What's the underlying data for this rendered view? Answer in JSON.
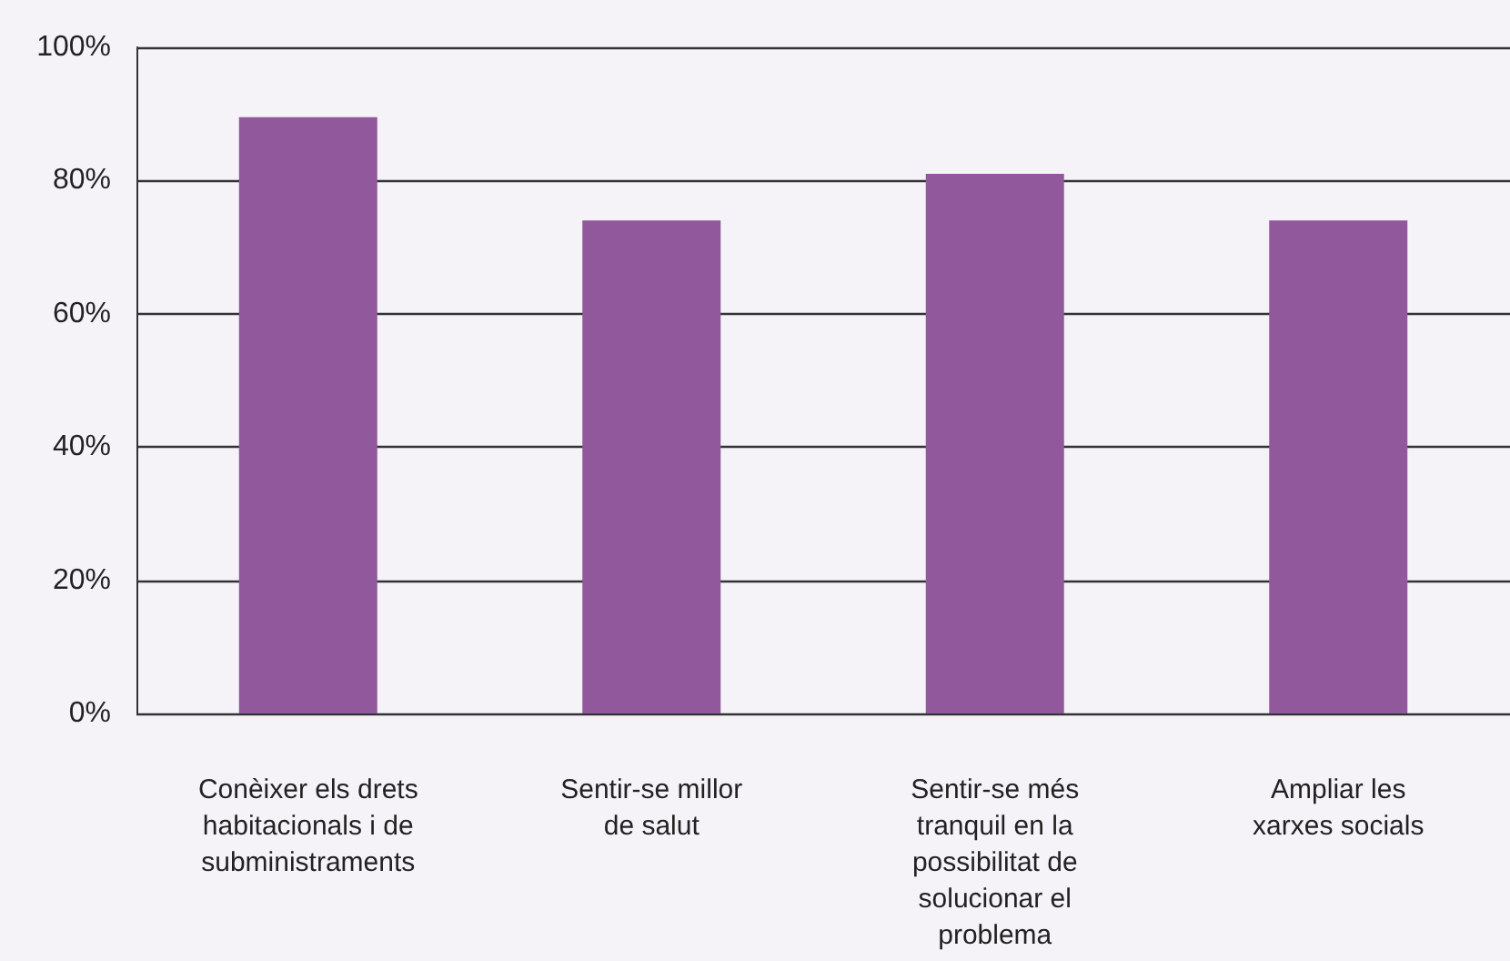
{
  "chart_data": {
    "type": "bar",
    "categories": [
      "Conèixer els drets\nhabitacionals i de\nsubministraments",
      "Sentir-se millor\nde salut",
      "Sentir-se més\ntranquil en la\npossibilitat de\nsolucionar el\nproblema",
      "Ampliar les\nxarxes socials"
    ],
    "values": [
      89.5,
      74,
      81,
      74
    ],
    "color": "#91589b",
    "ylim": [
      0,
      100
    ],
    "yticks": [
      {
        "value": 0,
        "label": "0%"
      },
      {
        "value": 20,
        "label": "20%"
      },
      {
        "value": 40,
        "label": "40%"
      },
      {
        "value": 60,
        "label": "60%"
      },
      {
        "value": 80,
        "label": "80%"
      },
      {
        "value": 100,
        "label": "100%"
      }
    ],
    "grid": "y"
  }
}
